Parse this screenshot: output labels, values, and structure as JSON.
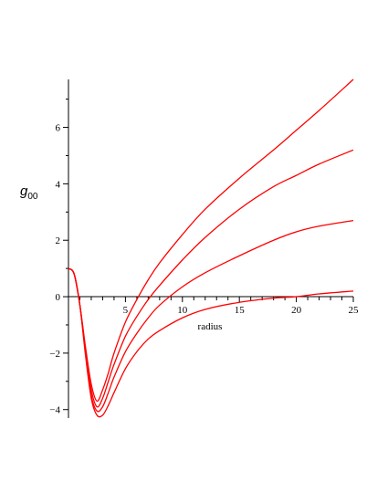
{
  "chart_data": {
    "type": "line",
    "title": "",
    "xlabel": "radius",
    "ylabel": "g",
    "ylabel_subscript": "00",
    "xlim": [
      0,
      25
    ],
    "ylim": [
      -4.3,
      7.7
    ],
    "x_ticks": [
      5,
      10,
      15,
      20,
      25
    ],
    "y_ticks": [
      -4,
      -2,
      0,
      2,
      4,
      6
    ],
    "grid": false,
    "legend": "none",
    "line_color": "#ff0000",
    "series": [
      {
        "x": [
          0,
          0.5,
          1,
          1.5,
          2,
          2.5,
          3,
          3.5,
          4,
          5,
          6,
          7,
          8,
          10,
          12,
          15,
          18,
          20,
          22,
          25
        ],
        "values": [
          1.0,
          0.8,
          -0.3,
          -1.8,
          -3.1,
          -3.7,
          -3.3,
          -2.7,
          -2.0,
          -0.9,
          -0.1,
          0.6,
          1.2,
          2.2,
          3.1,
          4.2,
          5.2,
          5.9,
          6.6,
          7.7
        ]
      },
      {
        "x": [
          0,
          0.5,
          1,
          1.5,
          2,
          2.5,
          3,
          3.5,
          4,
          5,
          6,
          7,
          8,
          10,
          12,
          15,
          18,
          20,
          22,
          25
        ],
        "values": [
          1.0,
          0.8,
          -0.3,
          -1.9,
          -3.3,
          -3.9,
          -3.6,
          -3.0,
          -2.4,
          -1.4,
          -0.7,
          -0.1,
          0.4,
          1.3,
          2.1,
          3.1,
          3.9,
          4.3,
          4.7,
          5.2
        ]
      },
      {
        "x": [
          0,
          0.5,
          1,
          1.5,
          2,
          2.5,
          3,
          3.5,
          4,
          5,
          6,
          7,
          8,
          10,
          12,
          15,
          18,
          20,
          22,
          25
        ],
        "values": [
          1.0,
          0.8,
          -0.3,
          -2.0,
          -3.5,
          -4.05,
          -3.9,
          -3.4,
          -2.85,
          -1.95,
          -1.3,
          -0.75,
          -0.3,
          0.35,
          0.85,
          1.45,
          2.0,
          2.3,
          2.5,
          2.7
        ]
      },
      {
        "x": [
          0,
          0.5,
          1,
          1.5,
          2,
          2.5,
          3,
          3.5,
          4,
          5,
          6,
          7,
          8,
          10,
          12,
          15,
          18,
          20,
          22,
          25
        ],
        "values": [
          1.0,
          0.8,
          -0.3,
          -2.1,
          -3.6,
          -4.2,
          -4.2,
          -3.85,
          -3.4,
          -2.55,
          -1.95,
          -1.5,
          -1.2,
          -0.75,
          -0.45,
          -0.2,
          -0.05,
          0.0,
          0.1,
          0.2
        ]
      }
    ]
  }
}
